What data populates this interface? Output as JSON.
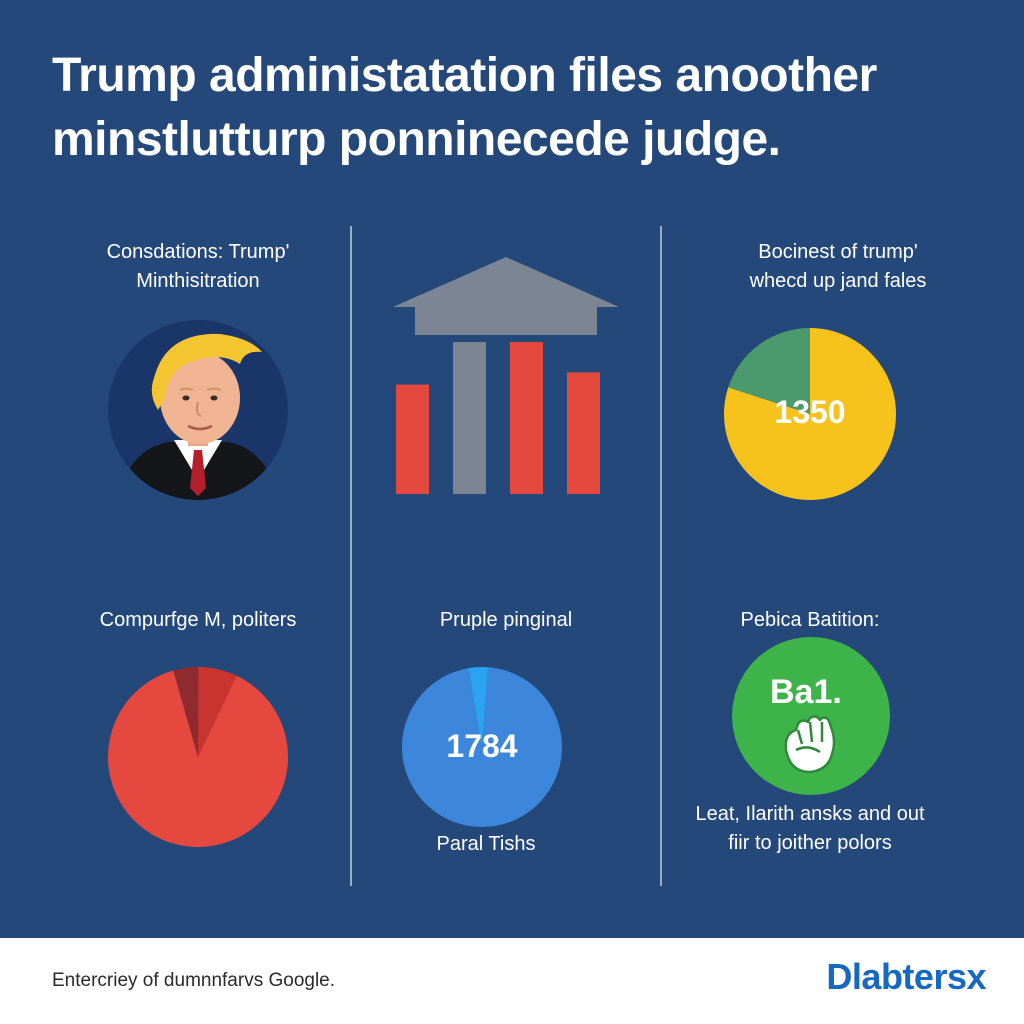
{
  "headline": {
    "line1": "Trump administatation files anoother",
    "line2": "minstlutturp ponninecede judge."
  },
  "colors": {
    "background": "#24487a",
    "red": "#e4483f",
    "gray": "#7c8594",
    "yellow": "#f6c21b",
    "green": "#4b9a6e",
    "blue": "#3c86dc",
    "bright_green": "#3db34a",
    "brand_blue": "#1768c2"
  },
  "panels": {
    "top_left": {
      "label_line1": "Consdations: Trump'",
      "label_line2": "Minthisitration",
      "icon": "politician-portrait-icon"
    },
    "top_middle": {
      "icon": "courthouse-icon",
      "bars": [
        {
          "color": "red",
          "value": 0.72
        },
        {
          "color": "gray",
          "value": 1.0
        },
        {
          "color": "red",
          "value": 1.0
        },
        {
          "color": "red",
          "value": 0.8
        }
      ]
    },
    "top_right": {
      "label_line1": "Bocinest of trump'",
      "label_line2": "whecd up jand fales",
      "center_value": "1350",
      "slices": [
        {
          "color": "green",
          "fraction": 0.2
        },
        {
          "color": "yellow",
          "fraction": 0.8
        }
      ]
    },
    "bottom_left": {
      "label": "Compurfge M, politers",
      "slices": [
        {
          "color": "dark-red",
          "fraction": 0.045
        },
        {
          "color": "mid-red",
          "fraction": 0.07
        },
        {
          "color": "red",
          "fraction": 0.885
        }
      ]
    },
    "bottom_middle": {
      "label": "Pruple pinginal",
      "center_value": "1784",
      "caption": "Paral Tishs",
      "slices": [
        {
          "color": "light-blue",
          "fraction": 0.04
        },
        {
          "color": "blue",
          "fraction": 0.96
        }
      ]
    },
    "bottom_right": {
      "label": "Pebica Batition:",
      "badge_text": "Ba1.",
      "icon": "raised-fist-icon",
      "caption_line1": "Leat, Ilarith ansks and out",
      "caption_line2": "fiir to joither polors"
    }
  },
  "footer": {
    "text": "Entercriey of dumnnfarvs Google.",
    "brand": "Dlabtersx"
  }
}
